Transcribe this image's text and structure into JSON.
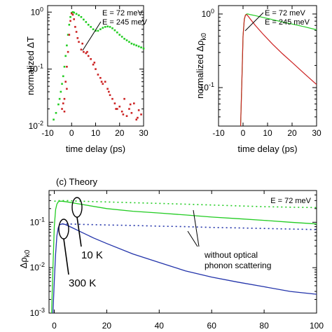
{
  "chart_data": [
    {
      "type": "scatter",
      "panel": "a",
      "xlabel": "time delay (ps)",
      "ylabel": "normalized ΔT",
      "xlim": [
        -10,
        30
      ],
      "ylim": [
        0.01,
        1.3
      ],
      "yscale": "log",
      "xticks": [
        -10,
        0,
        10,
        20,
        30
      ],
      "yticks": [
        {
          "v": 1,
          "label": "10",
          "exp": "0"
        },
        {
          "v": 0.1,
          "label": "10",
          "exp": "-1"
        },
        {
          "v": 0.01,
          "label": "10",
          "exp": "-2"
        }
      ],
      "legend": [
        "E = 72 meV",
        "E = 245 meV"
      ],
      "series": [
        {
          "name": "E = 72 meV",
          "color": "#22cc22",
          "x": [
            -7.5,
            -6.5,
            -5.5,
            -5,
            -4.5,
            -4,
            -3.5,
            -3,
            -2.5,
            -2,
            -1.5,
            -1,
            -0.5,
            0,
            0.5,
            1,
            2,
            3,
            4,
            5,
            6,
            7,
            8,
            9,
            10,
            11,
            12,
            13,
            14,
            15,
            16,
            17,
            18,
            19,
            20,
            21,
            22,
            23,
            24,
            25,
            26,
            27,
            28,
            29,
            30
          ],
          "y": [
            0.013,
            0.017,
            0.024,
            0.03,
            0.04,
            0.055,
            0.075,
            0.11,
            0.17,
            0.26,
            0.4,
            0.6,
            0.82,
            0.97,
            1.0,
            0.98,
            0.93,
            0.88,
            0.82,
            0.74,
            0.67,
            0.6,
            0.55,
            0.5,
            0.47,
            0.47,
            0.5,
            0.53,
            0.55,
            0.56,
            0.55,
            0.52,
            0.48,
            0.44,
            0.4,
            0.37,
            0.34,
            0.32,
            0.3,
            0.28,
            0.27,
            0.26,
            0.25,
            0.24,
            0.23
          ]
        },
        {
          "name": "E = 245 meV",
          "color": "#cc2222",
          "x": [
            -4,
            -3.5,
            -3,
            -2.5,
            -2,
            -1.5,
            -1,
            -0.5,
            0,
            0.5,
            1,
            1.5,
            2,
            2.5,
            3,
            4,
            5,
            6,
            7,
            8,
            9,
            10,
            11,
            12,
            13,
            14,
            15,
            16,
            17,
            18,
            19,
            20,
            21,
            22,
            23,
            24,
            25,
            26,
            27,
            28,
            29,
            -3,
            -2,
            4.5,
            6.5,
            9.5,
            12.5,
            15.5,
            18.5,
            21.5,
            24.5,
            27.5
          ],
          "y": [
            0.02,
            0.025,
            0.03,
            0.06,
            0.11,
            0.2,
            0.4,
            0.7,
            0.95,
            0.9,
            0.75,
            0.55,
            0.45,
            0.35,
            0.3,
            0.22,
            0.2,
            0.19,
            0.17,
            0.15,
            0.12,
            0.1,
            0.08,
            0.07,
            0.055,
            0.06,
            0.045,
            0.035,
            0.03,
            0.025,
            0.02,
            0.022,
            0.018,
            0.03,
            0.015,
            0.02,
            0.017,
            0.025,
            0.013,
            0.019,
            0.016,
            0.018,
            0.045,
            0.28,
            0.2,
            0.13,
            0.06,
            0.04,
            0.02,
            0.016,
            0.024,
            0.014
          ]
        }
      ]
    },
    {
      "type": "line",
      "panel": "b",
      "xlabel": "time delay (ps)",
      "ylabel": "normalized Δρ",
      "ylabel_sub": "k0",
      "xlim": [
        -10,
        30
      ],
      "ylim": [
        0.03,
        1.3
      ],
      "yscale": "log",
      "xticks": [
        -10,
        0,
        10,
        20,
        30
      ],
      "yticks": [
        {
          "v": 1,
          "label": "10",
          "exp": "0"
        },
        {
          "v": 0.1,
          "label": "10",
          "exp": "-1"
        }
      ],
      "legend": [
        "E = 72 meV",
        "E = 245 meV"
      ],
      "series": [
        {
          "name": "E = 72 meV",
          "color": "#22cc22",
          "x": [
            -1,
            -0.5,
            0,
            0.5,
            1,
            1.5,
            2,
            3,
            5,
            8,
            12,
            16,
            20,
            25,
            30
          ],
          "y": [
            0.03,
            0.12,
            0.5,
            0.85,
            0.97,
            1.0,
            1.0,
            0.98,
            0.95,
            0.9,
            0.84,
            0.78,
            0.73,
            0.67,
            0.61
          ]
        },
        {
          "name": "E = 245 meV",
          "color": "#cc2222",
          "x": [
            -1,
            -0.5,
            0,
            0.5,
            1,
            1.5,
            2,
            3,
            5,
            8,
            12,
            16,
            20,
            25,
            30
          ],
          "y": [
            0.03,
            0.12,
            0.5,
            0.85,
            0.97,
            0.98,
            0.94,
            0.85,
            0.7,
            0.54,
            0.39,
            0.29,
            0.22,
            0.155,
            0.11
          ]
        }
      ]
    },
    {
      "type": "line",
      "panel": "c",
      "title": "(c) Theory",
      "ylabel": "Δρ",
      "ylabel_sub": "k0",
      "xlim": [
        -2,
        100
      ],
      "ylim": [
        0.001,
        0.5
      ],
      "yscale": "log",
      "xticks": [
        0,
        20,
        40,
        60,
        80,
        100
      ],
      "yticks": [
        {
          "v": 0.1,
          "label": "10",
          "exp": "-1"
        },
        {
          "v": 0.01,
          "label": "10",
          "exp": "-2"
        },
        {
          "v": 0.001,
          "label": "10",
          "exp": "-3"
        }
      ],
      "legend": [
        "E = 72 meV"
      ],
      "annotations": [
        "without optical",
        "phonon scattering",
        "10 K",
        "300 K"
      ],
      "series": [
        {
          "name": "10 K",
          "color": "#22cc22",
          "dash": false,
          "x": [
            -1,
            -0.5,
            0,
            0.5,
            1,
            1.5,
            2,
            3,
            5,
            10,
            20,
            30,
            40,
            50,
            60,
            70,
            80,
            90,
            100
          ],
          "y": [
            0.001,
            0.01,
            0.08,
            0.19,
            0.25,
            0.28,
            0.29,
            0.29,
            0.28,
            0.25,
            0.2,
            0.175,
            0.16,
            0.145,
            0.13,
            0.12,
            0.11,
            0.1,
            0.092
          ]
        },
        {
          "name": "10 K",
          "color": "#22cc22",
          "dash": true,
          "x": [
            0,
            2,
            5,
            10,
            20,
            30,
            40,
            50,
            60,
            70,
            80,
            90,
            100
          ],
          "y": [
            0.29,
            0.3,
            0.3,
            0.29,
            0.28,
            0.27,
            0.26,
            0.25,
            0.24,
            0.23,
            0.22,
            0.215,
            0.21
          ]
        },
        {
          "name": "300 K",
          "color": "#2233aa",
          "dash": false,
          "x": [
            -0.5,
            0,
            0.5,
            1,
            1.5,
            2,
            3,
            4,
            5,
            7,
            10,
            15,
            20,
            30,
            40,
            50,
            60,
            70,
            80,
            90,
            100
          ],
          "y": [
            0.001,
            0.005,
            0.02,
            0.05,
            0.075,
            0.088,
            0.092,
            0.09,
            0.085,
            0.075,
            0.062,
            0.045,
            0.034,
            0.02,
            0.013,
            0.0085,
            0.0062,
            0.0048,
            0.0038,
            0.003,
            0.0026
          ]
        },
        {
          "name": "300 K",
          "color": "#2233aa",
          "dash": true,
          "x": [
            3,
            5,
            10,
            20,
            30,
            40,
            50,
            60,
            70,
            80,
            90,
            100
          ],
          "y": [
            0.092,
            0.092,
            0.09,
            0.087,
            0.085,
            0.082,
            0.08,
            0.077,
            0.075,
            0.073,
            0.071,
            0.069
          ]
        }
      ]
    }
  ]
}
